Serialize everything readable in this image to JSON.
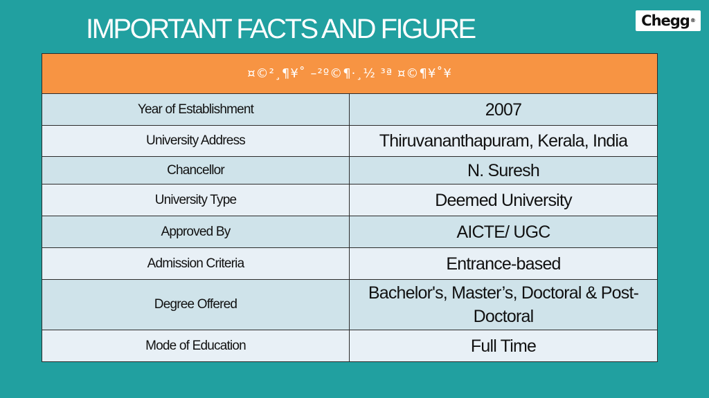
{
  "title": "IMPORTANT FACTS AND FIGURE",
  "logo": {
    "text": "Chegg",
    "mark": "®"
  },
  "table": {
    "header": "¤©²¸¶¥˚ –²º©¶·¸½ ³ª ¤©¶¥˚¥",
    "rows": [
      {
        "label": "Year of Establishment",
        "value": "2007"
      },
      {
        "label": "University Address",
        "value": "Thiruvananthapuram, Kerala, India"
      },
      {
        "label": "Chancellor",
        "value": "N. Suresh"
      },
      {
        "label": "University Type",
        "value": "Deemed University"
      },
      {
        "label": "Approved By",
        "value": "AICTE/ UGC"
      },
      {
        "label": "Admission Criteria",
        "value": "Entrance-based"
      },
      {
        "label": "Degree Offered",
        "value": "Bachelor's, Master’s, Doctoral & Post-Doctoral"
      },
      {
        "label": "Mode of Education",
        "value": "Full Time"
      }
    ]
  },
  "colors": {
    "background": "#21a0a0",
    "header": "#f79443",
    "row_dark": "#cfe3ea",
    "row_light": "#e8f0f6"
  }
}
